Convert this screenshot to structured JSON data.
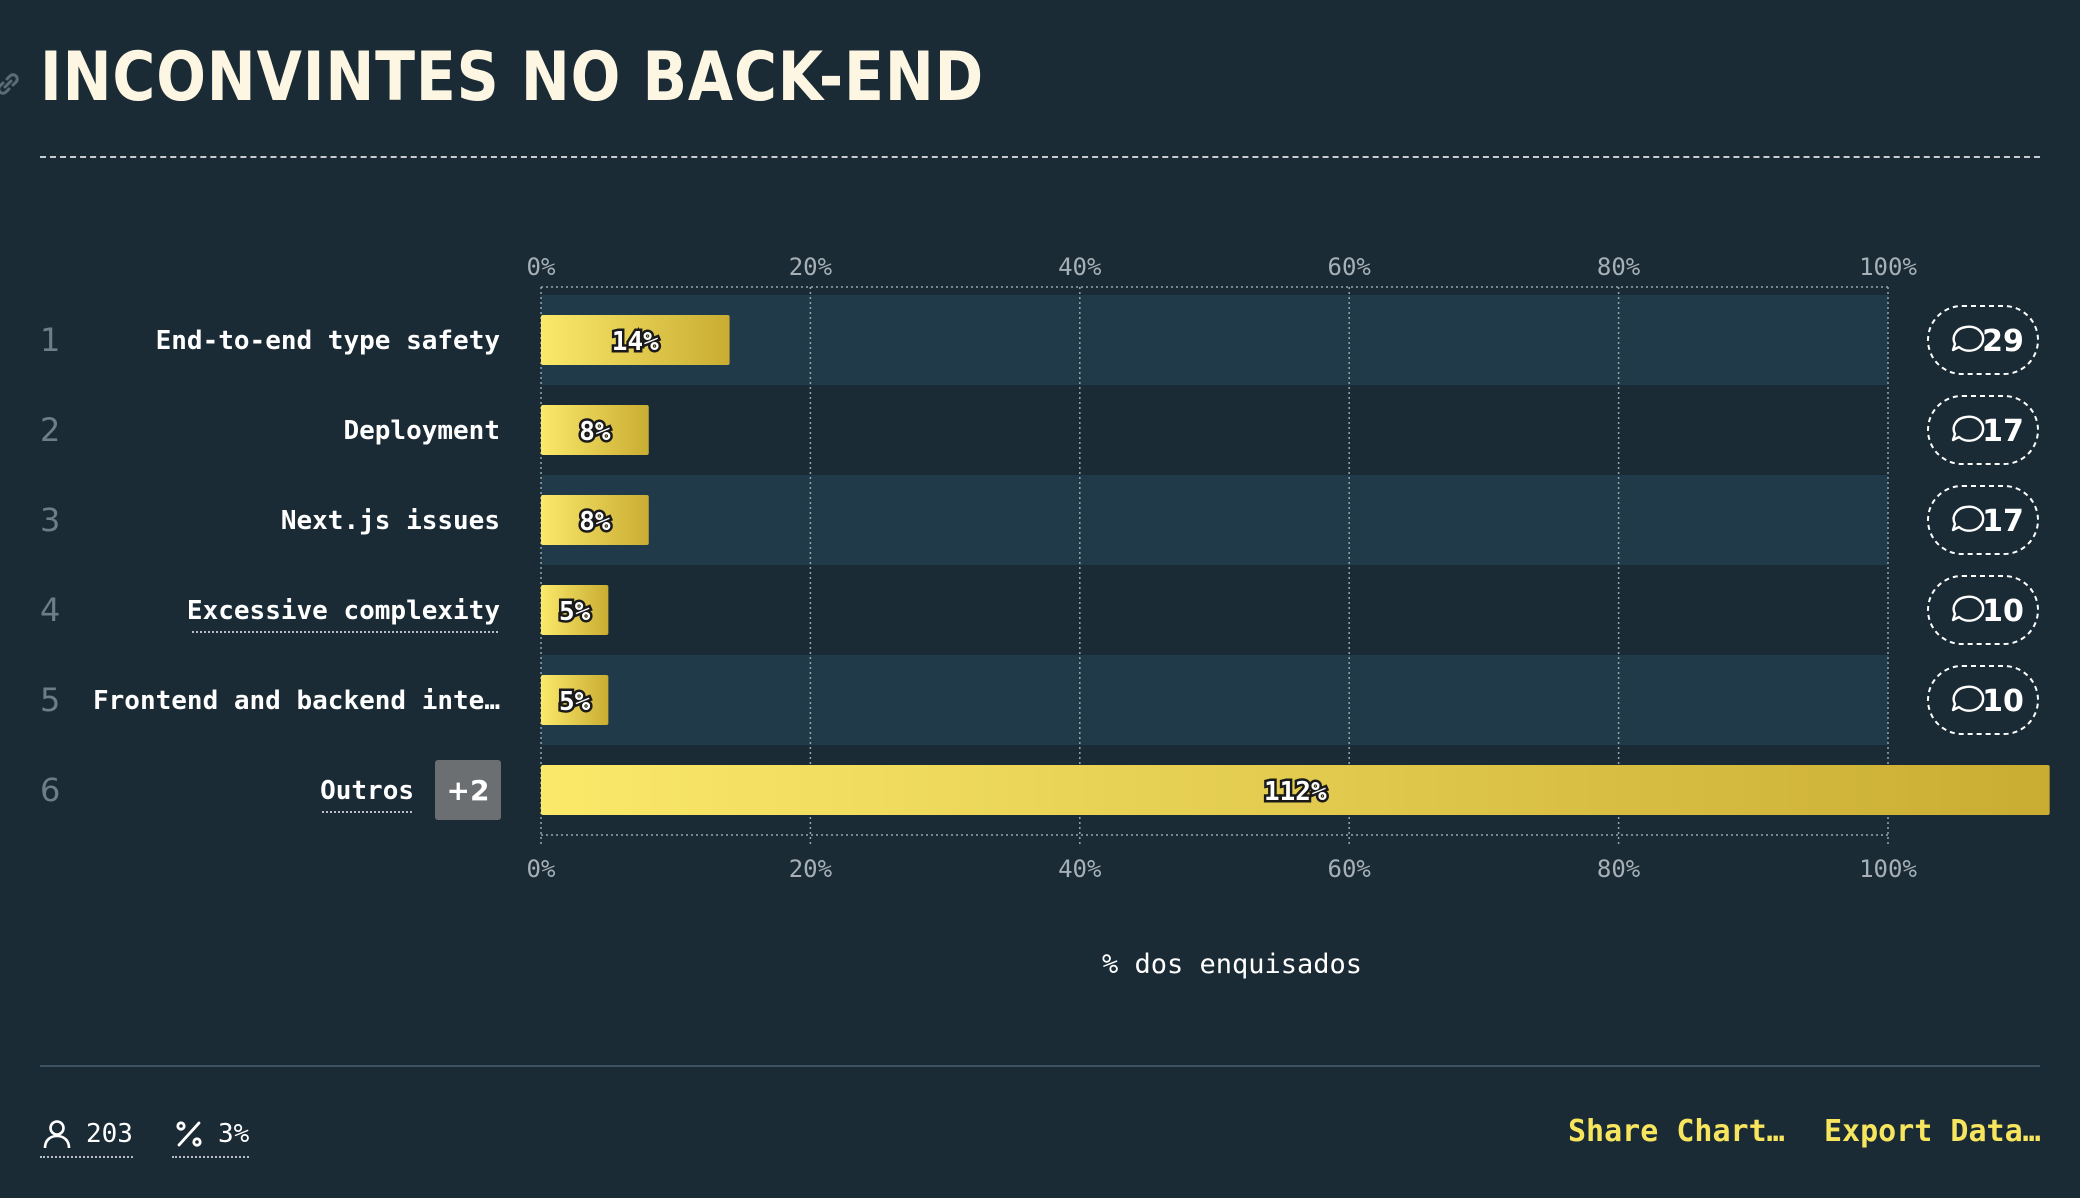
{
  "page": {
    "title": "INCONVINTES NO BACK-END"
  },
  "chart_data": {
    "type": "bar",
    "orientation": "horizontal",
    "title": "INCONVINTES NO BACK-END",
    "xlabel": "% dos enquisados",
    "xlim": [
      0,
      100
    ],
    "x_ticks": [
      "0%",
      "20%",
      "40%",
      "60%",
      "80%",
      "100%"
    ],
    "categories": [
      "End-to-end type safety",
      "Deployment",
      "Next.js issues",
      "Excessive complexity",
      "Frontend and backend inte…",
      "Outros"
    ],
    "ranks": [
      "1",
      "2",
      "3",
      "4",
      "5",
      "6"
    ],
    "values": [
      14,
      8,
      8,
      5,
      5,
      112
    ],
    "value_labels": [
      "14%",
      "8%",
      "8%",
      "5%",
      "5%",
      "112%"
    ],
    "comment_counts": [
      "29",
      "17",
      "17",
      "10",
      "10"
    ],
    "others_badge": "+2",
    "grid": true,
    "colors": {
      "bar_start": "#fbe96a",
      "bar_end": "#c9ad33",
      "band_odd": "#203a4a",
      "band_even": "#1a2b35",
      "background": "#1a2b35"
    }
  },
  "footer": {
    "respondents_icon": "user-icon",
    "respondents": "203",
    "percent_icon": "percent-icon",
    "percent": "3%",
    "share_label": "Share Chart…",
    "export_label": "Export Data…"
  }
}
